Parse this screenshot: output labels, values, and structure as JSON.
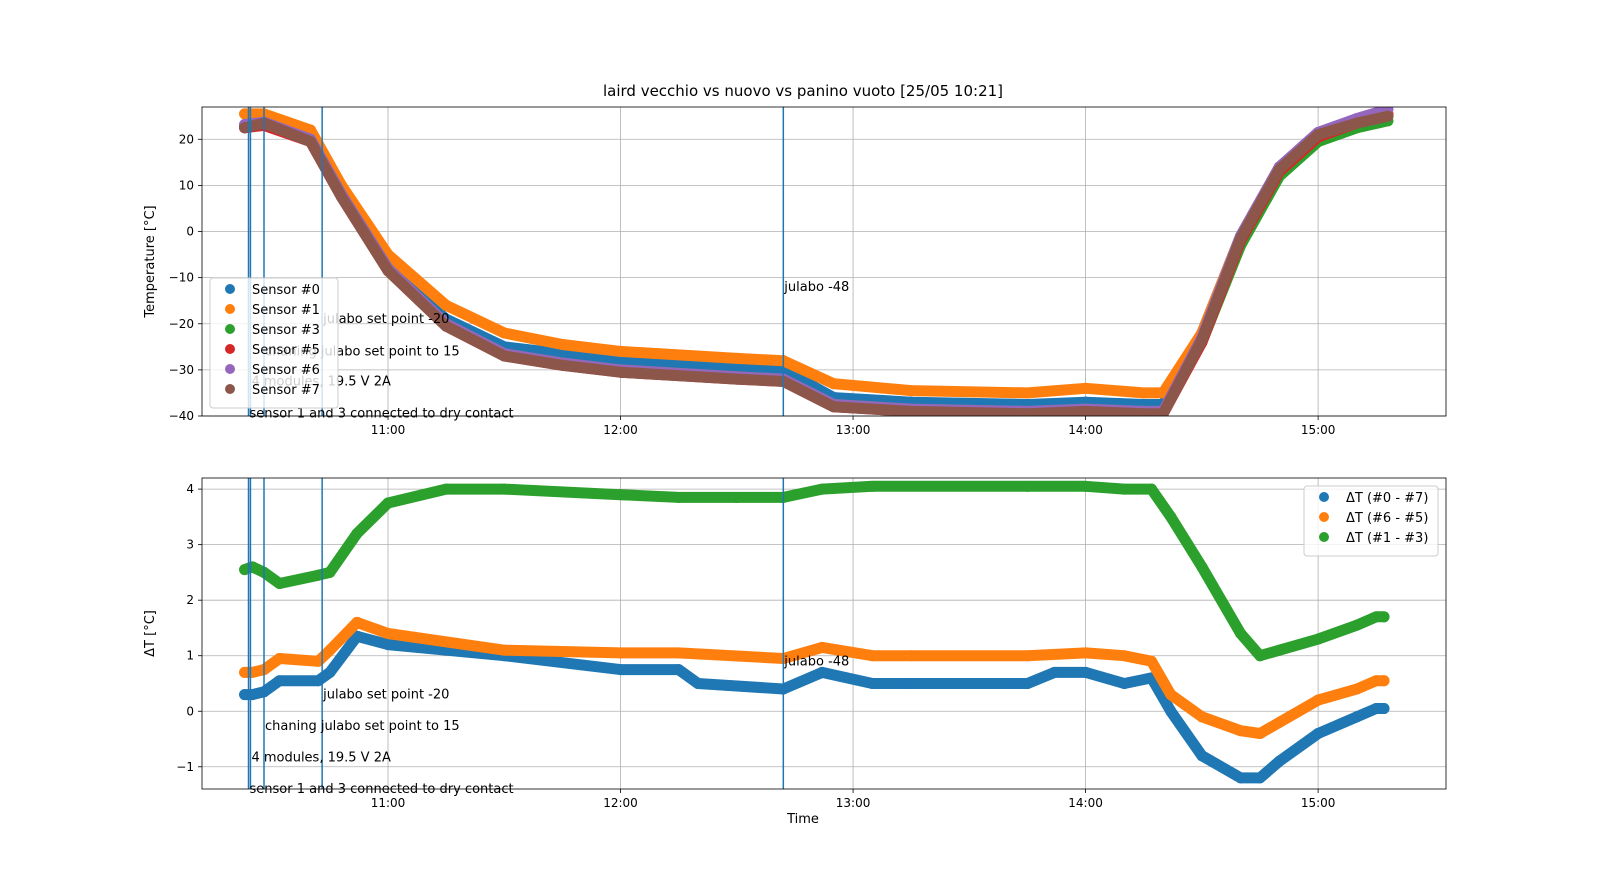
{
  "figure": {
    "title": "laird vecchio vs nuovo vs panino vuoto [25/05 10:21]",
    "xlabel": "Time"
  },
  "chart_data": [
    {
      "type": "scatter",
      "title": "laird vecchio vs nuovo vs panino vuoto [25/05 10:21]",
      "xlabel": "",
      "ylabel": "Temperature [°C]",
      "xlim": [
        "10:12",
        "15:33"
      ],
      "ylim": [
        -40,
        27
      ],
      "x_ticks": [
        "11:00",
        "12:00",
        "13:00",
        "14:00",
        "15:00"
      ],
      "y_ticks": [
        20,
        10,
        0,
        -10,
        -20,
        -30,
        -40
      ],
      "grid": true,
      "legend_position": "lower-left",
      "series": [
        {
          "name": "Sensor #0",
          "color": "#1f77b4",
          "x": [
            "10:23",
            "10:28",
            "10:40",
            "10:48",
            "11:00",
            "11:15",
            "11:30",
            "11:45",
            "12:00",
            "12:30",
            "12:42",
            "12:55",
            "13:15",
            "13:45",
            "14:00",
            "14:15",
            "14:20",
            "14:30",
            "14:40",
            "14:50",
            "15:00",
            "15:10",
            "15:18"
          ],
          "y": [
            23,
            24,
            20.5,
            8,
            -8,
            -19,
            -25,
            -26.5,
            -28,
            -29.5,
            -30,
            -36,
            -37,
            -37.5,
            -37,
            -37.5,
            -37.5,
            -22,
            -1,
            14,
            21,
            23.5,
            25
          ]
        },
        {
          "name": "Sensor #1",
          "color": "#ff7f0e",
          "x": [
            "10:23",
            "10:28",
            "10:40",
            "10:48",
            "11:00",
            "11:15",
            "11:30",
            "11:45",
            "12:00",
            "12:30",
            "12:42",
            "12:55",
            "13:15",
            "13:45",
            "14:00",
            "14:15",
            "14:20",
            "14:30",
            "14:40",
            "14:50",
            "15:00",
            "15:10",
            "15:18"
          ],
          "y": [
            25.5,
            25.5,
            22,
            10,
            -5,
            -16,
            -22,
            -24.5,
            -26,
            -27.5,
            -28,
            -33,
            -34.5,
            -35,
            -34,
            -35,
            -35,
            -22,
            -1,
            14,
            21,
            23.5,
            25
          ]
        },
        {
          "name": "Sensor #3",
          "color": "#2ca02c",
          "x": [
            "10:23",
            "10:28",
            "10:40",
            "10:48",
            "11:00",
            "11:15",
            "11:30",
            "11:45",
            "12:00",
            "12:30",
            "12:42",
            "12:55",
            "13:15",
            "13:45",
            "14:00",
            "14:15",
            "14:20",
            "14:30",
            "14:40",
            "14:50",
            "15:00",
            "15:10",
            "15:18"
          ],
          "y": [
            23,
            23.5,
            20,
            8,
            -8,
            -20,
            -26.5,
            -28.5,
            -30,
            -31.5,
            -32,
            -37.5,
            -38.5,
            -39,
            -38.5,
            -39,
            -39,
            -24,
            -3,
            12,
            19.5,
            22.5,
            24
          ]
        },
        {
          "name": "Sensor #5",
          "color": "#d62728",
          "x": [
            "10:23",
            "10:28",
            "10:40",
            "10:48",
            "11:00",
            "11:15",
            "11:30",
            "11:45",
            "12:00",
            "12:30",
            "12:42",
            "12:55",
            "13:15",
            "13:45",
            "14:00",
            "14:15",
            "14:20",
            "14:30",
            "14:40",
            "14:50",
            "15:00",
            "15:10",
            "15:18"
          ],
          "y": [
            22.5,
            23,
            19.5,
            7.5,
            -8.5,
            -20.5,
            -27,
            -29,
            -30.5,
            -32,
            -32.5,
            -38,
            -39,
            -39.5,
            -39,
            -39.5,
            -39.5,
            -24,
            -2,
            13,
            20.5,
            23.5,
            25.5
          ]
        },
        {
          "name": "Sensor #6",
          "color": "#9467bd",
          "x": [
            "10:23",
            "10:28",
            "10:40",
            "10:48",
            "11:00",
            "11:15",
            "11:30",
            "11:45",
            "12:00",
            "12:30",
            "12:42",
            "12:55",
            "13:15",
            "13:45",
            "14:00",
            "14:15",
            "14:20",
            "14:30",
            "14:40",
            "14:50",
            "15:00",
            "15:10",
            "15:18"
          ],
          "y": [
            23.2,
            23.7,
            20,
            8,
            -8,
            -20,
            -26.5,
            -28.5,
            -30,
            -31.5,
            -32,
            -37.5,
            -38.5,
            -39,
            -38.5,
            -39,
            -39,
            -23,
            -1,
            14,
            21.5,
            24.5,
            26.5
          ]
        },
        {
          "name": "Sensor #7",
          "color": "#8c564b",
          "x": [
            "10:23",
            "10:28",
            "10:40",
            "10:48",
            "11:00",
            "11:15",
            "11:30",
            "11:45",
            "12:00",
            "12:30",
            "12:42",
            "12:55",
            "13:15",
            "13:45",
            "14:00",
            "14:15",
            "14:20",
            "14:30",
            "14:40",
            "14:50",
            "15:00",
            "15:10",
            "15:18"
          ],
          "y": [
            22.5,
            23.5,
            19.5,
            7.5,
            -8.5,
            -20.5,
            -27,
            -29,
            -30.5,
            -32,
            -32.5,
            -38,
            -39,
            -39.5,
            -39,
            -39.5,
            -39.5,
            -23.5,
            -1.5,
            13.5,
            21,
            23.5,
            25
          ]
        }
      ],
      "vlines": [
        "10:24",
        "10:24.5",
        "10:28",
        "10:43",
        "12:42"
      ],
      "annotations": [
        {
          "text": "julabo -48",
          "x": "12:42",
          "y": -12
        },
        {
          "text": "julabo set point -20",
          "x": "10:43",
          "y": -19
        },
        {
          "text": "chaning julabo set point to 15",
          "x": "10:28",
          "y": -26
        },
        {
          "text": "4 modules, 19.5 V 2A",
          "x": "10:24.5",
          "y": -32.5
        },
        {
          "text": "sensor 1 and 3 connected to dry contact",
          "x": "10:24",
          "y": -39.5
        }
      ]
    },
    {
      "type": "scatter",
      "title": "",
      "xlabel": "Time",
      "ylabel": "ΔT [°C]",
      "xlim": [
        "10:12",
        "15:33"
      ],
      "ylim": [
        -1.4,
        4.2
      ],
      "x_ticks": [
        "11:00",
        "12:00",
        "13:00",
        "14:00",
        "15:00"
      ],
      "y_ticks": [
        4,
        3,
        2,
        1,
        0,
        -1
      ],
      "grid": true,
      "legend_position": "top-right",
      "series": [
        {
          "name": "ΔT (#0 - #7)",
          "color": "#1f77b4",
          "x": [
            "10:23",
            "10:25",
            "10:28",
            "10:32",
            "10:42",
            "10:45",
            "10:52",
            "11:00",
            "11:30",
            "12:00",
            "12:15",
            "12:20",
            "12:42",
            "12:52",
            "13:05",
            "13:15",
            "13:45",
            "13:52",
            "14:00",
            "14:10",
            "14:17",
            "14:22",
            "14:30",
            "14:40",
            "14:45",
            "14:50",
            "15:00",
            "15:10",
            "15:15",
            "15:17"
          ],
          "y": [
            0.3,
            0.3,
            0.35,
            0.55,
            0.55,
            0.7,
            1.35,
            1.2,
            1.0,
            0.75,
            0.75,
            0.5,
            0.4,
            0.7,
            0.5,
            0.5,
            0.5,
            0.7,
            0.7,
            0.5,
            0.6,
            0,
            -0.8,
            -1.2,
            -1.2,
            -0.9,
            -0.4,
            -0.1,
            0.05,
            0.05
          ]
        },
        {
          "name": "ΔT (#6 - #5)",
          "color": "#ff7f0e",
          "x": [
            "10:23",
            "10:25",
            "10:28",
            "10:32",
            "10:42",
            "10:45",
            "10:52",
            "11:00",
            "11:30",
            "12:00",
            "12:15",
            "12:42",
            "12:52",
            "13:05",
            "13:15",
            "13:45",
            "14:00",
            "14:10",
            "14:17",
            "14:22",
            "14:30",
            "14:40",
            "14:45",
            "14:50",
            "15:00",
            "15:10",
            "15:15",
            "15:17"
          ],
          "y": [
            0.7,
            0.7,
            0.75,
            0.95,
            0.9,
            1.1,
            1.6,
            1.4,
            1.1,
            1.05,
            1.05,
            0.95,
            1.15,
            1.0,
            1.0,
            1.0,
            1.05,
            1.0,
            0.9,
            0.3,
            -0.1,
            -0.35,
            -0.4,
            -0.2,
            0.2,
            0.4,
            0.55,
            0.55
          ]
        },
        {
          "name": "ΔT (#1 - #3)",
          "color": "#2ca02c",
          "x": [
            "10:23",
            "10:25",
            "10:28",
            "10:32",
            "10:42",
            "10:45",
            "10:52",
            "11:00",
            "11:15",
            "11:30",
            "12:00",
            "12:15",
            "12:30",
            "12:42",
            "12:52",
            "13:05",
            "13:45",
            "14:00",
            "14:10",
            "14:17",
            "14:22",
            "14:30",
            "14:40",
            "14:45",
            "14:50",
            "15:00",
            "15:10",
            "15:15",
            "15:17"
          ],
          "y": [
            2.55,
            2.6,
            2.5,
            2.3,
            2.45,
            2.5,
            3.2,
            3.75,
            4.0,
            4.0,
            3.9,
            3.85,
            3.85,
            3.85,
            4.0,
            4.05,
            4.05,
            4.05,
            4.0,
            4.0,
            3.5,
            2.6,
            1.4,
            1.0,
            1.1,
            1.3,
            1.55,
            1.7,
            1.7
          ]
        }
      ],
      "vlines": [
        "10:24",
        "10:24.5",
        "10:28",
        "10:43",
        "12:42"
      ],
      "annotations": [
        {
          "text": "julabo -48",
          "x": "12:42",
          "y": 0.9
        },
        {
          "text": "julabo set point -20",
          "x": "10:43",
          "y": 0.3
        },
        {
          "text": "chaning julabo set point to 15",
          "x": "10:28",
          "y": -0.27
        },
        {
          "text": "4 modules, 19.5 V 2A",
          "x": "10:24.5",
          "y": -0.83
        },
        {
          "text": "sensor 1 and 3 connected to dry contact",
          "x": "10:24",
          "y": -1.4
        }
      ]
    }
  ]
}
